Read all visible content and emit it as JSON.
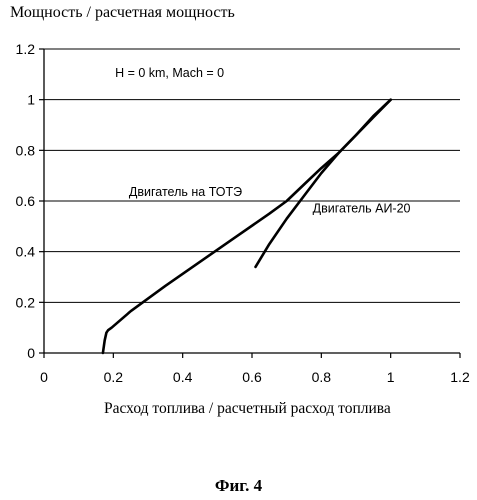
{
  "figure": {
    "ylabel": "Мощность / расчетная мощность",
    "xlabel": "Расход топлива / расчетный расход топлива",
    "caption": "Фиг. 4"
  },
  "chart_data": {
    "type": "line",
    "title": "",
    "xlabel": "Расход топлива / расчетный расход топлива",
    "ylabel": "Мощность / расчетная мощность",
    "xlim": [
      0,
      1.2
    ],
    "ylim": [
      0,
      1.2
    ],
    "xticks": [
      "0",
      "0.2",
      "0.4",
      "0.6",
      "0.8",
      "1",
      "1.2"
    ],
    "yticks": [
      "0",
      "0.2",
      "0.4",
      "0.6",
      "0.8",
      "1",
      "1.2"
    ],
    "grid": "horizontal",
    "annotations": [
      {
        "text": "H = 0 km, Mach = 0",
        "x": 0.205,
        "y": 1.09
      },
      {
        "text": "Двигатель на ТОТЭ",
        "x": 0.245,
        "y": 0.62
      },
      {
        "text": "Двигатель АИ-20",
        "x": 0.775,
        "y": 0.555
      }
    ],
    "series": [
      {
        "name": "Двигатель на ТОТЭ",
        "x": [
          0.17,
          0.175,
          0.18,
          0.185,
          0.195,
          0.25,
          0.35,
          0.45,
          0.55,
          0.65,
          0.7,
          0.75,
          0.8,
          0.85,
          0.9,
          0.95,
          1.0
        ],
        "y": [
          0.0,
          0.05,
          0.08,
          0.09,
          0.1,
          0.165,
          0.265,
          0.36,
          0.455,
          0.55,
          0.6,
          0.665,
          0.73,
          0.79,
          0.86,
          0.93,
          1.0
        ]
      },
      {
        "name": "Двигатель АИ-20",
        "x": [
          0.61,
          0.65,
          0.7,
          0.75,
          0.8,
          0.85,
          0.9,
          0.95,
          1.0
        ],
        "y": [
          0.34,
          0.43,
          0.53,
          0.62,
          0.71,
          0.79,
          0.86,
          0.935,
          1.0
        ]
      }
    ]
  }
}
